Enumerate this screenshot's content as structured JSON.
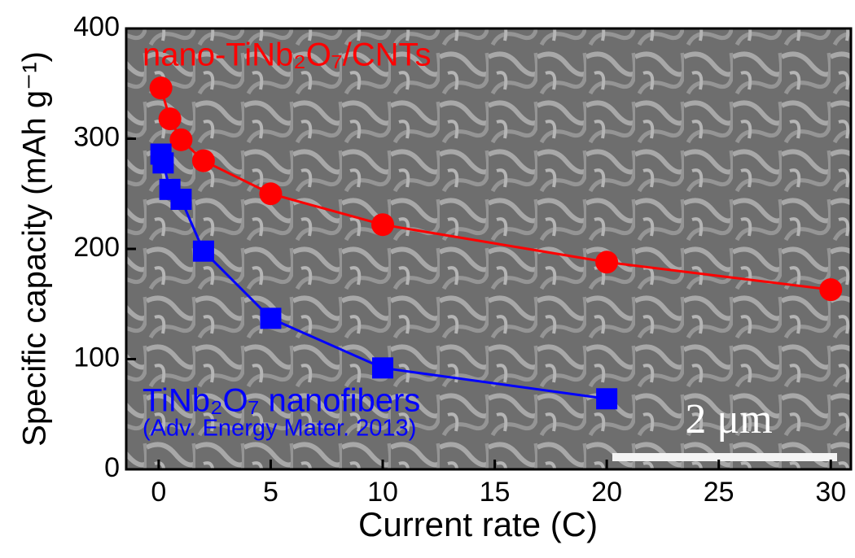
{
  "chart_data": {
    "type": "line",
    "x_label": "Current rate (C)",
    "y_label": "Specific capacity (mAh g⁻¹)",
    "xlim": [
      -1.45,
      30.9
    ],
    "xticks": [
      0,
      5,
      10,
      15,
      20,
      25,
      30
    ],
    "ylim": [
      0,
      400
    ],
    "yticks": [
      0,
      100,
      200,
      300,
      400
    ],
    "series": [
      {
        "name": "nano-TiNb₂O₇/CNTs",
        "color": "#ff0000",
        "marker": "circle",
        "x": [
          0.1,
          0.5,
          1,
          2,
          5,
          10,
          20,
          30
        ],
        "values": [
          346,
          318,
          299,
          280,
          250,
          222,
          188,
          163
        ]
      },
      {
        "name": "TiNb₂O₇ nanofibers",
        "color": "#0000ff",
        "marker": "square",
        "x": [
          0.1,
          0.2,
          0.5,
          1,
          2,
          5,
          10,
          20
        ],
        "values": [
          286,
          278,
          254,
          245,
          198,
          137,
          92,
          64
        ]
      }
    ],
    "annotations": [
      "(Adv. Energy Mater. 2013)",
      "2 μm"
    ]
  }
}
